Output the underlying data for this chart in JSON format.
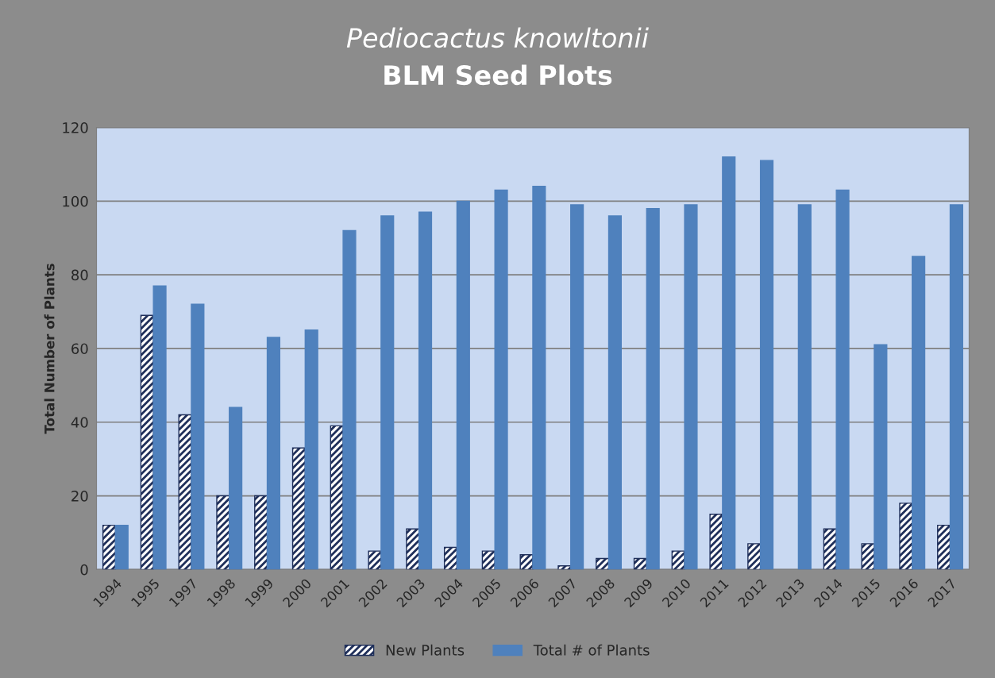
{
  "chart_data": {
    "type": "bar",
    "title": "Pediocactus knowltonii",
    "subtitle": "BLM Seed Plots",
    "ylabel": "Total Number of Plants",
    "categories": [
      "1994",
      "1995",
      "1997",
      "1998",
      "1999",
      "2000",
      "2001",
      "2002",
      "2003",
      "2004",
      "2005",
      "2006",
      "2007",
      "2008",
      "2009",
      "2010",
      "2011",
      "2012",
      "2013",
      "2014",
      "2015",
      "2016",
      "2017"
    ],
    "series": [
      {
        "name": "New Plants",
        "color": "#1f2f5a",
        "values": [
          12,
          69,
          42,
          20,
          20,
          33,
          39,
          5,
          11,
          6,
          5,
          4,
          1,
          3,
          3,
          5,
          15,
          7,
          null,
          11,
          7,
          18,
          12
        ]
      },
      {
        "name": "Total # of Plants",
        "color": "#4f81bd",
        "values": [
          12,
          77,
          72,
          44,
          63,
          65,
          92,
          96,
          97,
          100,
          103,
          104,
          99,
          96,
          98,
          99,
          112,
          111,
          99,
          103,
          61,
          85,
          99
        ]
      }
    ],
    "ylim": [
      0,
      120
    ],
    "yticks": [
      0,
      20,
      40,
      60,
      80,
      100,
      120
    ],
    "grid": "y",
    "legend": "bottom"
  }
}
